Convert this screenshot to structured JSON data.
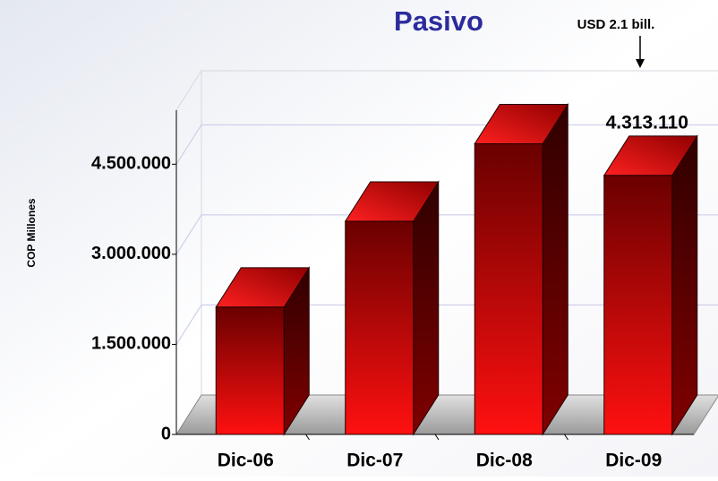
{
  "chart_data": {
    "type": "bar",
    "title": "Pasivo",
    "y_label": "COP Millones",
    "annotation": "USD 2.1 bill.",
    "categories": [
      "Dic-06",
      "Dic-07",
      "Dic-08",
      "Dic-09"
    ],
    "values": [
      2120000,
      3550000,
      4840000,
      4313110
    ],
    "value_labels": [
      null,
      null,
      null,
      "4.313.110"
    ],
    "color": "#e00000",
    "ylim": [
      0,
      5400000
    ],
    "yticks": [
      0,
      {
        "value": 1500000,
        "label": "1.500.000"
      },
      {
        "value": 3000000,
        "label": "3.000.000"
      },
      {
        "value": 4500000,
        "label": "4.500.000"
      }
    ],
    "grid": true
  }
}
